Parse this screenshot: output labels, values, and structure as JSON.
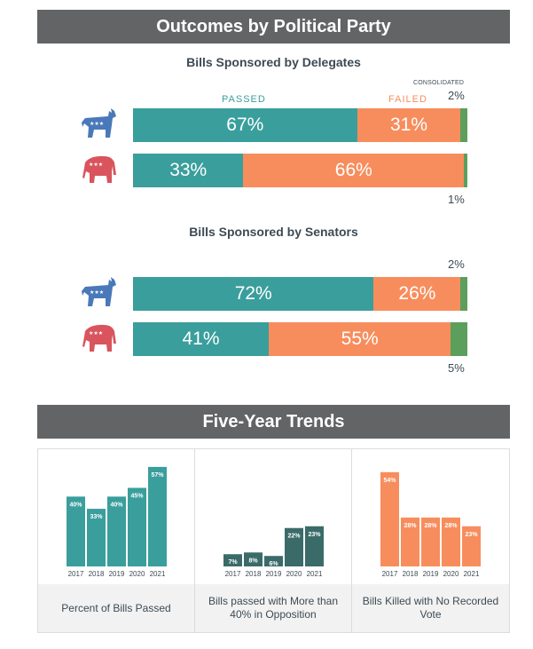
{
  "header1": {
    "title": "Outcomes by Political Party"
  },
  "delegates": {
    "subtitle": "Bills Sponsored by Delegates",
    "passed_label": "PASSED",
    "failed_label": "FAILED",
    "consolidated_label": "CONSOLIDATED",
    "dem": {
      "passed": "67%",
      "failed": "31%",
      "consolidated": "2%"
    },
    "rep": {
      "passed": "33%",
      "failed": "66%",
      "consolidated": "1%"
    }
  },
  "senators": {
    "subtitle": "Bills Sponsored by Senators",
    "dem": {
      "passed": "72%",
      "failed": "26%",
      "consolidated": "2%"
    },
    "rep": {
      "passed": "41%",
      "failed": "55%",
      "consolidated": "5%"
    }
  },
  "header2": {
    "title": "Five-Year Trends"
  },
  "colors": {
    "passed": "#3a9e9c",
    "failed": "#f78d5d",
    "consolidated": "#5c9e5c",
    "dark_teal": "#3a6b69",
    "dem_icon": "#4a79b9",
    "rep_icon": "#d9545c",
    "banner": "#626466"
  },
  "chart_data": [
    {
      "type": "bar",
      "title": "Bills Sponsored by Delegates",
      "stacked": true,
      "orientation": "horizontal",
      "categories": [
        "Democrat",
        "Republican"
      ],
      "series": [
        {
          "name": "PASSED",
          "values": [
            67,
            33
          ]
        },
        {
          "name": "FAILED",
          "values": [
            31,
            66
          ]
        },
        {
          "name": "CONSOLIDATED",
          "values": [
            2,
            1
          ]
        }
      ]
    },
    {
      "type": "bar",
      "title": "Bills Sponsored by Senators",
      "stacked": true,
      "orientation": "horizontal",
      "categories": [
        "Democrat",
        "Republican"
      ],
      "series": [
        {
          "name": "PASSED",
          "values": [
            72,
            41
          ]
        },
        {
          "name": "FAILED",
          "values": [
            26,
            55
          ]
        },
        {
          "name": "CONSOLIDATED",
          "values": [
            2,
            5
          ]
        }
      ]
    },
    {
      "type": "bar",
      "title": "Percent of Bills Passed",
      "categories": [
        "2017",
        "2018",
        "2019",
        "2020",
        "2021"
      ],
      "values": [
        40,
        33,
        40,
        45,
        57
      ],
      "labels": [
        "40%",
        "33%",
        "40%",
        "45%",
        "57%"
      ]
    },
    {
      "type": "bar",
      "title": "Bills passed with More than 40% in Opposition",
      "categories": [
        "2017",
        "2018",
        "2019",
        "2020",
        "2021"
      ],
      "values": [
        7,
        8,
        6,
        22,
        23
      ],
      "labels": [
        "7%",
        "8%",
        "6%",
        "22%",
        "23%"
      ]
    },
    {
      "type": "bar",
      "title": "Bills Killed with No Recorded Vote",
      "categories": [
        "2017",
        "2018",
        "2019",
        "2020",
        "2021"
      ],
      "values": [
        54,
        28,
        28,
        28,
        23
      ],
      "labels": [
        "54%",
        "28%",
        "28%",
        "28%",
        "23%"
      ]
    }
  ]
}
